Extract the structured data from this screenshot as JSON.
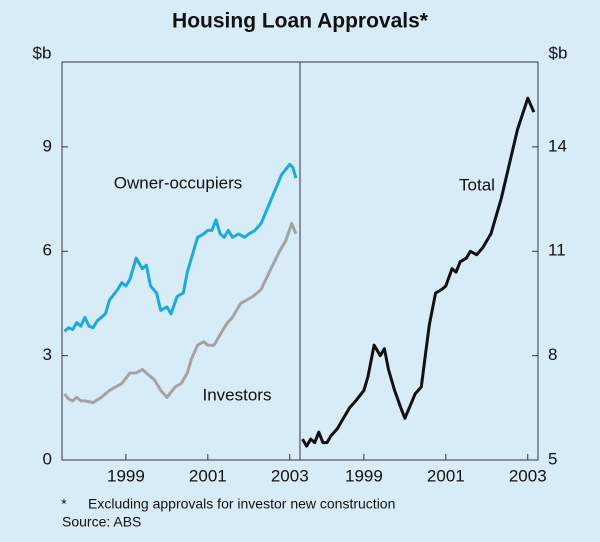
{
  "title": "Housing Loan Approvals*",
  "footnote": {
    "mark": "*",
    "text": "Excluding approvals for investor new construction"
  },
  "source": "Source: ABS",
  "chart_data": [
    {
      "type": "line",
      "ylabel": "$b",
      "ylim": [
        0,
        11.44
      ],
      "yticks": [
        0,
        3,
        6,
        9
      ],
      "xlim": [
        1997.44,
        2003.25
      ],
      "xticks": [
        1999,
        2001,
        2003
      ],
      "series": [
        {
          "name": "Owner-occupiers",
          "color": "#1ba9e0",
          "x": [
            1997.5,
            1997.6,
            1997.7,
            1997.8,
            1997.9,
            1998.0,
            1998.1,
            1998.2,
            1998.3,
            1998.5,
            1998.6,
            1998.8,
            1998.9,
            1999.0,
            1999.1,
            1999.25,
            1999.4,
            1999.5,
            1999.6,
            1999.75,
            1999.85,
            2000.0,
            2000.1,
            2000.25,
            2000.4,
            2000.5,
            2000.6,
            2000.75,
            2000.9,
            2001.0,
            2001.1,
            2001.2,
            2001.3,
            2001.4,
            2001.5,
            2001.6,
            2001.75,
            2001.9,
            2002.0,
            2002.15,
            2002.3,
            2002.55,
            2002.8,
            2003.0,
            2003.08,
            2003.15
          ],
          "values": [
            3.7,
            3.8,
            3.75,
            3.95,
            3.85,
            4.1,
            3.85,
            3.8,
            4.0,
            4.2,
            4.6,
            4.9,
            5.1,
            5.0,
            5.2,
            5.8,
            5.5,
            5.6,
            5.0,
            4.8,
            4.3,
            4.4,
            4.2,
            4.7,
            4.8,
            5.4,
            5.8,
            6.4,
            6.5,
            6.6,
            6.6,
            6.9,
            6.5,
            6.4,
            6.6,
            6.4,
            6.5,
            6.4,
            6.5,
            6.6,
            6.8,
            7.5,
            8.2,
            8.5,
            8.4,
            8.1
          ]
        },
        {
          "name": "Investors",
          "color": "#a3a3a3",
          "x": [
            1997.5,
            1997.6,
            1997.7,
            1997.8,
            1997.9,
            1998.0,
            1998.2,
            1998.4,
            1998.5,
            1998.6,
            1998.9,
            1999.1,
            1999.25,
            1999.4,
            1999.6,
            1999.7,
            1999.85,
            2000.0,
            2000.2,
            2000.35,
            2000.5,
            2000.6,
            2000.75,
            2000.9,
            2001.0,
            2001.15,
            2001.3,
            2001.45,
            2001.6,
            2001.8,
            2001.95,
            2002.1,
            2002.3,
            2002.5,
            2002.75,
            2002.9,
            2003.05,
            2003.15
          ],
          "values": [
            1.9,
            1.75,
            1.7,
            1.8,
            1.7,
            1.7,
            1.65,
            1.8,
            1.9,
            2.0,
            2.2,
            2.5,
            2.5,
            2.6,
            2.4,
            2.3,
            2.0,
            1.8,
            2.1,
            2.2,
            2.5,
            2.9,
            3.3,
            3.4,
            3.3,
            3.3,
            3.6,
            3.9,
            4.1,
            4.5,
            4.6,
            4.7,
            4.9,
            5.4,
            6.0,
            6.3,
            6.8,
            6.5
          ]
        }
      ]
    },
    {
      "type": "line",
      "ylabel": "$b",
      "ylim": [
        5,
        16.44
      ],
      "yticks": [
        5,
        8,
        11,
        14
      ],
      "xlim": [
        1997.44,
        2003.25
      ],
      "xticks": [
        1999,
        2001,
        2003
      ],
      "series": [
        {
          "name": "Total",
          "color": "#111111",
          "x": [
            1997.5,
            1997.6,
            1997.7,
            1997.8,
            1997.9,
            1998.0,
            1998.1,
            1998.2,
            1998.35,
            1998.5,
            1998.65,
            1998.8,
            1999.0,
            1999.1,
            1999.25,
            1999.4,
            1999.5,
            1999.6,
            1999.75,
            1999.9,
            2000.0,
            2000.25,
            2000.4,
            2000.5,
            2000.6,
            2000.75,
            2000.9,
            2001.0,
            2001.15,
            2001.25,
            2001.35,
            2001.5,
            2001.6,
            2001.75,
            2001.9,
            2002.1,
            2002.35,
            2002.55,
            2002.75,
            2003.0,
            2003.15
          ],
          "values": [
            5.6,
            5.4,
            5.6,
            5.5,
            5.8,
            5.5,
            5.5,
            5.7,
            5.9,
            6.2,
            6.5,
            6.7,
            7.0,
            7.4,
            8.3,
            8.0,
            8.2,
            7.6,
            7.0,
            6.5,
            6.2,
            6.9,
            7.1,
            8.0,
            8.9,
            9.8,
            9.9,
            10.0,
            10.5,
            10.4,
            10.7,
            10.8,
            11.0,
            10.9,
            11.1,
            11.5,
            12.5,
            13.5,
            14.5,
            15.4,
            15.0
          ]
        }
      ]
    }
  ]
}
